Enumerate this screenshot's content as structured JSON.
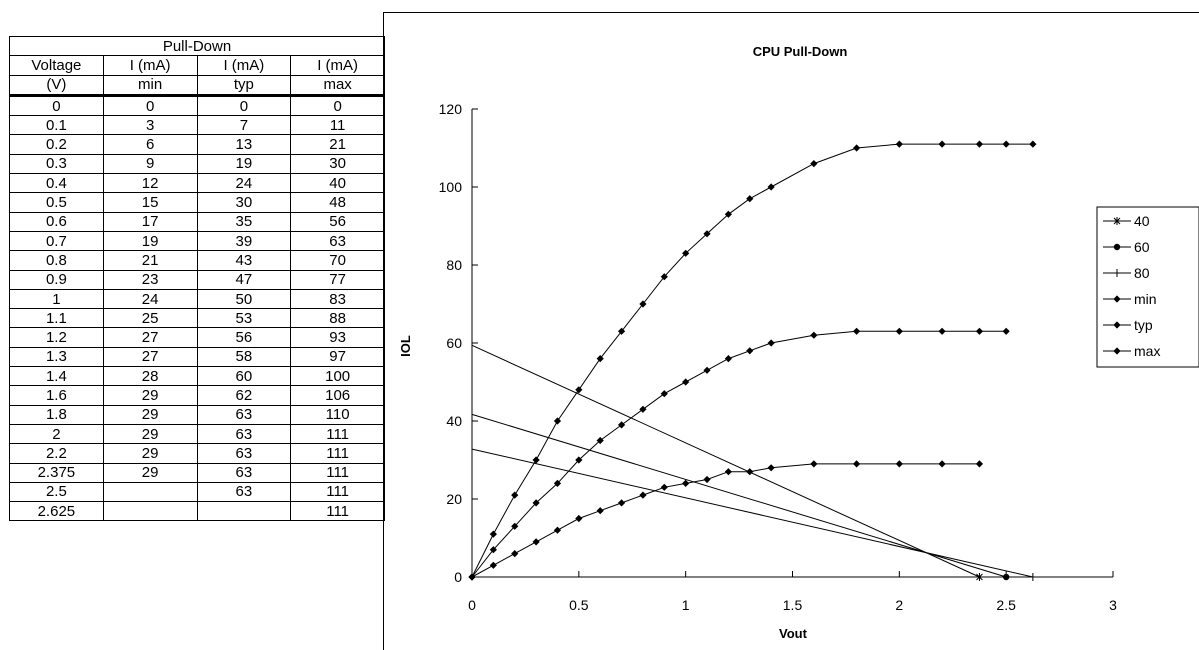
{
  "table": {
    "title": "Pull-Down",
    "header1": [
      "Voltage",
      "I (mA)",
      "I (mA)",
      "I (mA)"
    ],
    "header2": [
      "(V)",
      "min",
      "typ",
      "max"
    ],
    "rows": [
      [
        "0",
        "0",
        "0",
        "0"
      ],
      [
        "0.1",
        "3",
        "7",
        "11"
      ],
      [
        "0.2",
        "6",
        "13",
        "21"
      ],
      [
        "0.3",
        "9",
        "19",
        "30"
      ],
      [
        "0.4",
        "12",
        "24",
        "40"
      ],
      [
        "0.5",
        "15",
        "30",
        "48"
      ],
      [
        "0.6",
        "17",
        "35",
        "56"
      ],
      [
        "0.7",
        "19",
        "39",
        "63"
      ],
      [
        "0.8",
        "21",
        "43",
        "70"
      ],
      [
        "0.9",
        "23",
        "47",
        "77"
      ],
      [
        "1",
        "24",
        "50",
        "83"
      ],
      [
        "1.1",
        "25",
        "53",
        "88"
      ],
      [
        "1.2",
        "27",
        "56",
        "93"
      ],
      [
        "1.3",
        "27",
        "58",
        "97"
      ],
      [
        "1.4",
        "28",
        "60",
        "100"
      ],
      [
        "1.6",
        "29",
        "62",
        "106"
      ],
      [
        "1.8",
        "29",
        "63",
        "110"
      ],
      [
        "2",
        "29",
        "63",
        "111"
      ],
      [
        "2.2",
        "29",
        "63",
        "111"
      ],
      [
        "2.375",
        "29",
        "63",
        "111"
      ],
      [
        "2.5",
        "",
        "63",
        "111"
      ],
      [
        "2.625",
        "",
        "",
        "111"
      ]
    ]
  },
  "chart_data": {
    "type": "line",
    "title": "CPU Pull-Down",
    "xlabel": "Vout",
    "ylabel": "IOL",
    "xlim": [
      0,
      3
    ],
    "ylim": [
      0,
      120
    ],
    "xticks": [
      "0",
      "0.5",
      "1",
      "1.5",
      "2",
      "2.5",
      "3"
    ],
    "yticks": [
      "0",
      "20",
      "40",
      "60",
      "80",
      "100",
      "120"
    ],
    "legend_position": "right",
    "series": [
      {
        "name": "40",
        "marker": "star",
        "color": "#000000",
        "points": [
          [
            0,
            59.4
          ],
          [
            2.375,
            0
          ]
        ]
      },
      {
        "name": "60",
        "marker": "circle",
        "color": "#000000",
        "points": [
          [
            0,
            41.7
          ],
          [
            2.5,
            0
          ]
        ]
      },
      {
        "name": "80",
        "marker": "plus",
        "color": "#000000",
        "points": [
          [
            0,
            32.8
          ],
          [
            2.625,
            0
          ]
        ]
      },
      {
        "name": "min",
        "marker": "diamond",
        "color": "#000000",
        "points": [
          [
            0,
            0
          ],
          [
            0.1,
            3
          ],
          [
            0.2,
            6
          ],
          [
            0.3,
            9
          ],
          [
            0.4,
            12
          ],
          [
            0.5,
            15
          ],
          [
            0.6,
            17
          ],
          [
            0.7,
            19
          ],
          [
            0.8,
            21
          ],
          [
            0.9,
            23
          ],
          [
            1,
            24
          ],
          [
            1.1,
            25
          ],
          [
            1.2,
            27
          ],
          [
            1.3,
            27
          ],
          [
            1.4,
            28
          ],
          [
            1.6,
            29
          ],
          [
            1.8,
            29
          ],
          [
            2,
            29
          ],
          [
            2.2,
            29
          ],
          [
            2.375,
            29
          ]
        ]
      },
      {
        "name": "typ",
        "marker": "diamond",
        "color": "#000000",
        "points": [
          [
            0,
            0
          ],
          [
            0.1,
            7
          ],
          [
            0.2,
            13
          ],
          [
            0.3,
            19
          ],
          [
            0.4,
            24
          ],
          [
            0.5,
            30
          ],
          [
            0.6,
            35
          ],
          [
            0.7,
            39
          ],
          [
            0.8,
            43
          ],
          [
            0.9,
            47
          ],
          [
            1,
            50
          ],
          [
            1.1,
            53
          ],
          [
            1.2,
            56
          ],
          [
            1.3,
            58
          ],
          [
            1.4,
            60
          ],
          [
            1.6,
            62
          ],
          [
            1.8,
            63
          ],
          [
            2,
            63
          ],
          [
            2.2,
            63
          ],
          [
            2.375,
            63
          ],
          [
            2.5,
            63
          ]
        ]
      },
      {
        "name": "max",
        "marker": "diamond",
        "color": "#000000",
        "points": [
          [
            0,
            0
          ],
          [
            0.1,
            11
          ],
          [
            0.2,
            21
          ],
          [
            0.3,
            30
          ],
          [
            0.4,
            40
          ],
          [
            0.5,
            48
          ],
          [
            0.6,
            56
          ],
          [
            0.7,
            63
          ],
          [
            0.8,
            70
          ],
          [
            0.9,
            77
          ],
          [
            1,
            83
          ],
          [
            1.1,
            88
          ],
          [
            1.2,
            93
          ],
          [
            1.3,
            97
          ],
          [
            1.4,
            100
          ],
          [
            1.6,
            106
          ],
          [
            1.8,
            110
          ],
          [
            2,
            111
          ],
          [
            2.2,
            111
          ],
          [
            2.375,
            111
          ],
          [
            2.5,
            111
          ],
          [
            2.625,
            111
          ]
        ]
      }
    ]
  }
}
